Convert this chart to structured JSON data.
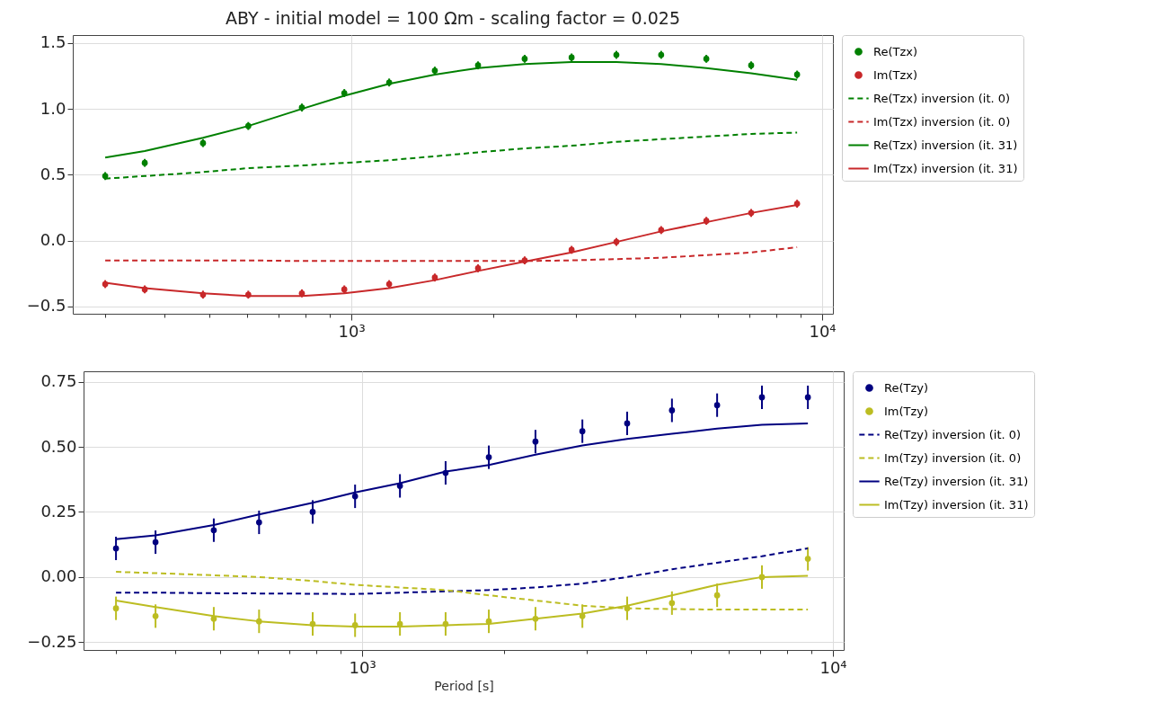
{
  "chart_data": [
    {
      "type": "line",
      "title": "ABY - initial model = 100 Ωm - scaling factor = 0.025",
      "x": [
        300,
        364,
        484,
        604,
        785,
        966,
        1203,
        1504,
        1858,
        2334,
        2936,
        3655,
        4550,
        5675,
        7066,
        8846
      ],
      "xlim": [
        256,
        10540
      ],
      "xticks": [
        {
          "value": 300,
          "label": null
        },
        {
          "value": 400,
          "label": null
        },
        {
          "value": 500,
          "label": null
        },
        {
          "value": 600,
          "label": null
        },
        {
          "value": 700,
          "label": null
        },
        {
          "value": 800,
          "label": null
        },
        {
          "value": 900,
          "label": null
        },
        {
          "value": 1000,
          "label": "10³"
        },
        {
          "value": 2000,
          "label": null
        },
        {
          "value": 3000,
          "label": null
        },
        {
          "value": 4000,
          "label": null
        },
        {
          "value": 5000,
          "label": null
        },
        {
          "value": 6000,
          "label": null
        },
        {
          "value": 7000,
          "label": null
        },
        {
          "value": 8000,
          "label": null
        },
        {
          "value": 9000,
          "label": null
        },
        {
          "value": 10000,
          "label": "10⁴"
        }
      ],
      "ylim": [
        -0.555,
        1.56
      ],
      "yticks": [
        {
          "value": -0.5,
          "label": "−0.5"
        },
        {
          "value": 0,
          "label": "0.0"
        },
        {
          "value": 0.5,
          "label": "0.5"
        },
        {
          "value": 1,
          "label": "1.0"
        },
        {
          "value": 1.5,
          "label": "1.5"
        }
      ],
      "log": "x",
      "grid": true,
      "legend": "right",
      "series": [
        {
          "name": "Re(Tzx)",
          "type": "scatter",
          "marker": "circle",
          "color": "#008000",
          "values": [
            0.49,
            0.59,
            0.74,
            0.87,
            1.01,
            1.12,
            1.2,
            1.29,
            1.33,
            1.38,
            1.39,
            1.41,
            1.41,
            1.38,
            1.33,
            1.26
          ],
          "errors": [
            0.03,
            0.03,
            0.03,
            0.03,
            0.03,
            0.03,
            0.03,
            0.03,
            0.03,
            0.03,
            0.03,
            0.03,
            0.03,
            0.03,
            0.03,
            0.03
          ]
        },
        {
          "name": "Im(Tzx)",
          "type": "scatter",
          "marker": "circle",
          "color": "#c8282a",
          "values": [
            -0.33,
            -0.37,
            -0.41,
            -0.41,
            -0.4,
            -0.37,
            -0.33,
            -0.28,
            -0.21,
            -0.15,
            -0.07,
            -0.01,
            0.08,
            0.15,
            0.21,
            0.28
          ],
          "errors": [
            0.03,
            0.03,
            0.03,
            0.03,
            0.03,
            0.03,
            0.03,
            0.03,
            0.03,
            0.03,
            0.03,
            0.03,
            0.03,
            0.03,
            0.03,
            0.03
          ]
        },
        {
          "name": "Re(Tzx) inversion (it. 0)",
          "type": "line",
          "line_style": "dashed",
          "color": "#008000",
          "values": [
            0.47,
            0.49,
            0.52,
            0.55,
            0.57,
            0.59,
            0.61,
            0.64,
            0.67,
            0.7,
            0.72,
            0.75,
            0.77,
            0.79,
            0.81,
            0.82
          ]
        },
        {
          "name": "Im(Tzx) inversion (it. 0)",
          "type": "line",
          "line_style": "dashed",
          "color": "#c8282a",
          "values": [
            -0.15,
            -0.15,
            -0.15,
            -0.15,
            -0.155,
            -0.155,
            -0.155,
            -0.155,
            -0.155,
            -0.155,
            -0.15,
            -0.14,
            -0.13,
            -0.11,
            -0.09,
            -0.05
          ]
        },
        {
          "name": "Re(Tzx) inversion (it. 31)",
          "type": "line",
          "line_style": "solid",
          "color": "#008000",
          "values": [
            0.63,
            0.68,
            0.78,
            0.87,
            1.0,
            1.1,
            1.19,
            1.26,
            1.31,
            1.34,
            1.355,
            1.355,
            1.34,
            1.31,
            1.27,
            1.22
          ]
        },
        {
          "name": "Im(Tzx) inversion (it. 31)",
          "type": "line",
          "line_style": "solid",
          "color": "#c8282a",
          "values": [
            -0.32,
            -0.36,
            -0.4,
            -0.42,
            -0.42,
            -0.4,
            -0.36,
            -0.3,
            -0.23,
            -0.16,
            -0.09,
            -0.01,
            0.07,
            0.14,
            0.21,
            0.27
          ]
        }
      ]
    },
    {
      "type": "line",
      "xlabel": "Period [s]",
      "x": [
        300,
        364,
        484,
        604,
        785,
        966,
        1203,
        1504,
        1858,
        2334,
        2936,
        3655,
        4550,
        5675,
        7066,
        8846
      ],
      "xlim": [
        256,
        10540
      ],
      "xticks": [
        {
          "value": 300,
          "label": null
        },
        {
          "value": 400,
          "label": null
        },
        {
          "value": 500,
          "label": null
        },
        {
          "value": 600,
          "label": null
        },
        {
          "value": 700,
          "label": null
        },
        {
          "value": 800,
          "label": null
        },
        {
          "value": 900,
          "label": null
        },
        {
          "value": 1000,
          "label": "10³"
        },
        {
          "value": 2000,
          "label": null
        },
        {
          "value": 3000,
          "label": null
        },
        {
          "value": 4000,
          "label": null
        },
        {
          "value": 5000,
          "label": null
        },
        {
          "value": 6000,
          "label": null
        },
        {
          "value": 7000,
          "label": null
        },
        {
          "value": 8000,
          "label": null
        },
        {
          "value": 9000,
          "label": null
        },
        {
          "value": 10000,
          "label": "10⁴"
        }
      ],
      "ylim": [
        -0.28,
        0.79
      ],
      "yticks": [
        {
          "value": -0.25,
          "label": "−0.25"
        },
        {
          "value": 0,
          "label": "0.00"
        },
        {
          "value": 0.25,
          "label": "0.25"
        },
        {
          "value": 0.5,
          "label": "0.50"
        },
        {
          "value": 0.75,
          "label": "0.75"
        }
      ],
      "log": "x",
      "grid": true,
      "legend": "right",
      "series": [
        {
          "name": "Re(Tzy)",
          "type": "scatter",
          "marker": "circle",
          "color": "#000080",
          "values": [
            0.11,
            0.134,
            0.18,
            0.21,
            0.25,
            0.31,
            0.35,
            0.4,
            0.46,
            0.52,
            0.56,
            0.59,
            0.64,
            0.66,
            0.69,
            0.69
          ],
          "errors": [
            0.045,
            0.045,
            0.045,
            0.045,
            0.045,
            0.045,
            0.045,
            0.045,
            0.045,
            0.045,
            0.045,
            0.045,
            0.045,
            0.045,
            0.045,
            0.045
          ]
        },
        {
          "name": "Im(Tzy)",
          "type": "scatter",
          "marker": "circle",
          "color": "#bcbd22",
          "values": [
            -0.12,
            -0.15,
            -0.16,
            -0.17,
            -0.18,
            -0.185,
            -0.18,
            -0.18,
            -0.17,
            -0.16,
            -0.15,
            -0.12,
            -0.1,
            -0.07,
            0.0,
            0.07
          ],
          "errors": [
            0.045,
            0.045,
            0.045,
            0.045,
            0.045,
            0.045,
            0.045,
            0.045,
            0.045,
            0.045,
            0.045,
            0.045,
            0.045,
            0.045,
            0.045,
            0.045
          ]
        },
        {
          "name": "Re(Tzy) inversion (it. 0)",
          "type": "line",
          "line_style": "dashed",
          "color": "#000080",
          "values": [
            -0.06,
            -0.06,
            -0.062,
            -0.063,
            -0.064,
            -0.065,
            -0.06,
            -0.055,
            -0.05,
            -0.04,
            -0.025,
            0.0,
            0.03,
            0.055,
            0.08,
            0.11
          ]
        },
        {
          "name": "Im(Tzy) inversion (it. 0)",
          "type": "line",
          "line_style": "dashed",
          "color": "#bcbd22",
          "values": [
            0.02,
            0.015,
            0.007,
            0.0,
            -0.015,
            -0.03,
            -0.04,
            -0.05,
            -0.07,
            -0.09,
            -0.11,
            -0.12,
            -0.123,
            -0.125,
            -0.125,
            -0.125
          ]
        },
        {
          "name": "Re(Tzy) inversion (it. 31)",
          "type": "line",
          "line_style": "solid",
          "color": "#000080",
          "values": [
            0.145,
            0.16,
            0.2,
            0.24,
            0.285,
            0.325,
            0.36,
            0.405,
            0.43,
            0.47,
            0.505,
            0.53,
            0.55,
            0.57,
            0.585,
            0.59
          ]
        },
        {
          "name": "Im(Tzy) inversion (it. 31)",
          "type": "line",
          "line_style": "solid",
          "color": "#bcbd22",
          "values": [
            -0.09,
            -0.115,
            -0.15,
            -0.17,
            -0.185,
            -0.19,
            -0.19,
            -0.185,
            -0.18,
            -0.16,
            -0.14,
            -0.11,
            -0.07,
            -0.03,
            0.0,
            0.005
          ]
        }
      ]
    }
  ]
}
